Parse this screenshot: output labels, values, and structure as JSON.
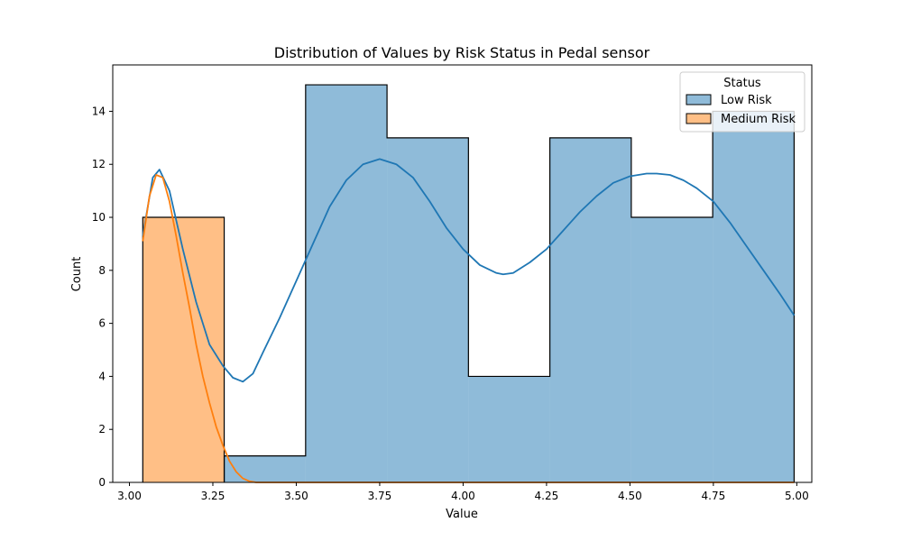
{
  "chart_data": {
    "type": "histogram",
    "title": "Distribution of Values by Risk Status in Pedal sensor",
    "xlabel": "Value",
    "ylabel": "Count",
    "xlim": [
      2.95,
      5.045
    ],
    "ylim": [
      0,
      15.75
    ],
    "x_ticks": [
      "3.00",
      "3.25",
      "3.50",
      "3.75",
      "4.00",
      "4.25",
      "4.50",
      "4.75",
      "5.00"
    ],
    "y_ticks": [
      "0",
      "2",
      "4",
      "6",
      "8",
      "10",
      "12",
      "14"
    ],
    "bin_edges": [
      3.04,
      3.284,
      3.528,
      3.772,
      4.016,
      4.26,
      4.504,
      4.748,
      4.992
    ],
    "series": [
      {
        "name": "Low Risk",
        "color": "#1f77b4",
        "counts": [
          0,
          1,
          15,
          13,
          4,
          13,
          10,
          14
        ],
        "kde": [
          [
            3.04,
            9.3
          ],
          [
            3.07,
            11.5
          ],
          [
            3.09,
            11.8
          ],
          [
            3.12,
            11.0
          ],
          [
            3.16,
            8.8
          ],
          [
            3.2,
            6.8
          ],
          [
            3.24,
            5.2
          ],
          [
            3.28,
            4.4
          ],
          [
            3.31,
            3.95
          ],
          [
            3.34,
            3.8
          ],
          [
            3.37,
            4.1
          ],
          [
            3.4,
            4.9
          ],
          [
            3.45,
            6.2
          ],
          [
            3.5,
            7.6
          ],
          [
            3.55,
            9.0
          ],
          [
            3.6,
            10.4
          ],
          [
            3.65,
            11.4
          ],
          [
            3.7,
            12.0
          ],
          [
            3.75,
            12.2
          ],
          [
            3.8,
            12.0
          ],
          [
            3.85,
            11.5
          ],
          [
            3.9,
            10.6
          ],
          [
            3.95,
            9.6
          ],
          [
            4.0,
            8.8
          ],
          [
            4.05,
            8.2
          ],
          [
            4.1,
            7.9
          ],
          [
            4.12,
            7.85
          ],
          [
            4.15,
            7.9
          ],
          [
            4.2,
            8.3
          ],
          [
            4.25,
            8.8
          ],
          [
            4.3,
            9.5
          ],
          [
            4.35,
            10.2
          ],
          [
            4.4,
            10.8
          ],
          [
            4.45,
            11.3
          ],
          [
            4.5,
            11.55
          ],
          [
            4.55,
            11.65
          ],
          [
            4.58,
            11.65
          ],
          [
            4.62,
            11.6
          ],
          [
            4.66,
            11.4
          ],
          [
            4.7,
            11.1
          ],
          [
            4.75,
            10.6
          ],
          [
            4.8,
            9.8
          ],
          [
            4.85,
            8.9
          ],
          [
            4.9,
            8.0
          ],
          [
            4.95,
            7.1
          ],
          [
            4.992,
            6.3
          ]
        ]
      },
      {
        "name": "Medium Risk",
        "color": "#ff7f0e",
        "counts": [
          10,
          0,
          0,
          0,
          0,
          0,
          0,
          0
        ],
        "kde": [
          [
            3.04,
            9.1
          ],
          [
            3.06,
            10.8
          ],
          [
            3.08,
            11.6
          ],
          [
            3.1,
            11.5
          ],
          [
            3.12,
            10.6
          ],
          [
            3.14,
            9.3
          ],
          [
            3.16,
            7.9
          ],
          [
            3.18,
            6.6
          ],
          [
            3.2,
            5.2
          ],
          [
            3.22,
            4.0
          ],
          [
            3.24,
            3.0
          ],
          [
            3.26,
            2.1
          ],
          [
            3.28,
            1.4
          ],
          [
            3.3,
            0.8
          ],
          [
            3.32,
            0.4
          ],
          [
            3.34,
            0.15
          ],
          [
            3.36,
            0.04
          ],
          [
            3.38,
            0.0
          ],
          [
            3.5,
            0.0
          ],
          [
            4.0,
            0.0
          ],
          [
            4.5,
            0.0
          ],
          [
            4.992,
            0.0
          ]
        ]
      }
    ],
    "legend": {
      "title": "Status",
      "position": "top-right",
      "entries": [
        "Low Risk",
        "Medium Risk"
      ]
    },
    "grid": false
  }
}
